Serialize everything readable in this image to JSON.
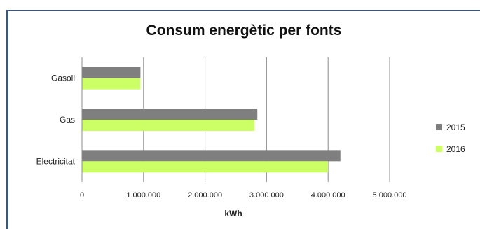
{
  "chart_data": {
    "type": "bar",
    "orientation": "horizontal",
    "title": "Consum energètic per fonts",
    "xlabel": "kWh",
    "ylabel": "",
    "categories": [
      "Gasoil",
      "Gas",
      "Electricitat"
    ],
    "series": [
      {
        "name": "2015",
        "color": "#7f7f7f",
        "values": [
          950000,
          2850000,
          4200000
        ]
      },
      {
        "name": "2016",
        "color": "#ccff66",
        "values": [
          950000,
          2800000,
          4000000
        ]
      }
    ],
    "xlim": [
      0,
      5000000
    ],
    "xticks": [
      0,
      1000000,
      2000000,
      3000000,
      4000000,
      5000000
    ],
    "xtick_labels": [
      "0",
      "1.000.000",
      "2.000.000",
      "3.000.000",
      "4.000.000",
      "5.000.000"
    ],
    "grid": "vertical",
    "legend_position": "right"
  }
}
